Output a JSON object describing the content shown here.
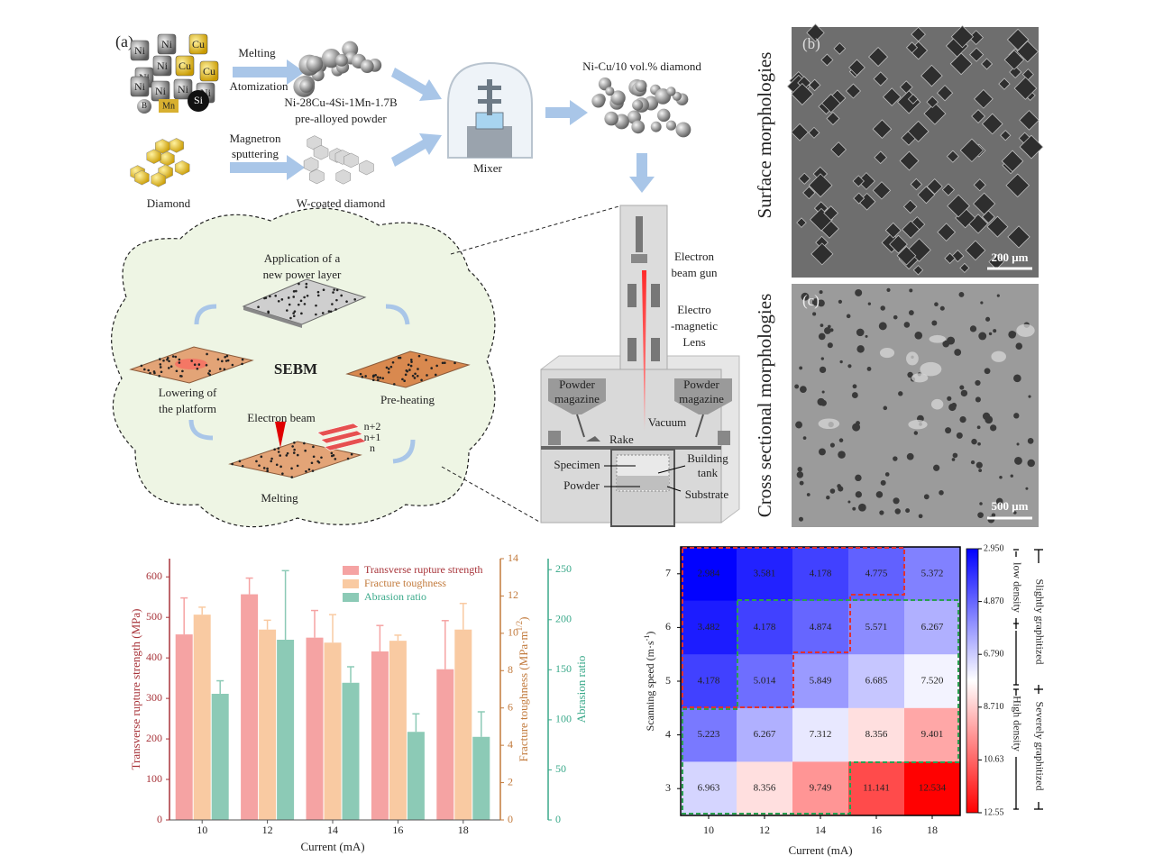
{
  "panel_a": {
    "label": "(a)",
    "elements": {
      "ni": "Ni",
      "cu": "Cu",
      "b": "B",
      "mn": "Mn",
      "si": "Si"
    },
    "melting": "Melting",
    "atomization": "Atomization",
    "alloy_name": "Ni-28Cu-4Si-1Mn-1.7B",
    "alloy_desc": "pre-alloyed powder",
    "diamond": "Diamond",
    "magnetron": "Magnetron",
    "sputtering": "sputtering",
    "coated": "W-coated diamond",
    "mixer": "Mixer",
    "mixture": "Ni-Cu/10 vol.% diamond",
    "cycle": {
      "step1": [
        "Application of a",
        "new power layer"
      ],
      "center": "SEBM",
      "lowering": [
        "Lowering of",
        "the platform"
      ],
      "preheat": "Pre-heating",
      "beam": "Electron beam",
      "melting": "Melting",
      "layers": [
        "n+2",
        "n+1",
        "n"
      ]
    },
    "machine": {
      "gun": [
        "Electron",
        "beam gun"
      ],
      "lens": [
        "Electro",
        "-magnetic",
        "Lens"
      ],
      "magazine": [
        "Powder",
        "magazine"
      ],
      "vacuum": "Vacuum",
      "rake": "Rake",
      "specimen": "Specimen",
      "powder": "Powder",
      "tank": [
        "Building",
        "tank"
      ],
      "substrate": "Substrate"
    }
  },
  "panel_b": {
    "label": "(b)",
    "title": "Surface morphologies",
    "scale": "200 μm"
  },
  "panel_c": {
    "label": "(c)",
    "title": "Cross sectional morphologies",
    "scale": "500 μm"
  },
  "chart_data": [
    {
      "type": "bar",
      "categories": [
        10,
        12,
        14,
        16,
        18
      ],
      "x_label": "Current (mA)",
      "y_label": "Transverse rupture strength (MPa)",
      "y2_label": "Fracture toughness (MPa·m",
      "y2_label_sup": "1/2",
      "y2_label_end": ")",
      "y3_label": "Abrasion ratio",
      "ylim": [
        0,
        645
      ],
      "yticks": [
        0,
        100,
        200,
        300,
        400,
        500,
        600
      ],
      "y_color": "#a8343a",
      "y2lim": [
        0,
        14
      ],
      "y2ticks": [
        0,
        2,
        4,
        6,
        8,
        10,
        12,
        14
      ],
      "y2_color": "#c27a3c",
      "y3lim": [
        0,
        261
      ],
      "y3ticks": [
        0,
        50,
        100,
        150,
        200,
        250
      ],
      "y3_color": "#3aa98a",
      "legend": "upper right",
      "series": [
        {
          "name": "Transverse rupture strength",
          "color": "#f5a3a3",
          "axis": "y",
          "values": [
            458,
            557,
            450,
            416,
            372
          ],
          "errors": [
            90,
            40,
            67,
            64,
            120
          ]
        },
        {
          "name": "Fracture toughness",
          "color": "#f9caa2",
          "axis": "y2",
          "values": [
            11.0,
            10.2,
            9.5,
            9.6,
            10.2
          ],
          "errors": [
            0.4,
            0.5,
            1.5,
            0.3,
            1.4
          ]
        },
        {
          "name": "Abrasion ratio",
          "color": "#8ccab6",
          "axis": "y3",
          "values": [
            126,
            180,
            137,
            88,
            83
          ],
          "errors": [
            13,
            69,
            16,
            18,
            25
          ]
        }
      ]
    },
    {
      "type": "heatmap",
      "x_categories": [
        10,
        12,
        14,
        16,
        18
      ],
      "y_categories": [
        7,
        6,
        5,
        4,
        3
      ],
      "x_label": "Current (mA)",
      "y_label": "Scanning speed (m·s",
      "y_label_sup": "-1",
      "y_label_end": ")",
      "values": [
        [
          2.984,
          3.581,
          4.178,
          4.775,
          5.372
        ],
        [
          3.482,
          4.178,
          4.874,
          5.571,
          6.267
        ],
        [
          4.178,
          5.014,
          5.849,
          6.685,
          7.52
        ],
        [
          5.223,
          6.267,
          7.312,
          8.356,
          9.401
        ],
        [
          6.963,
          8.356,
          9.749,
          11.141,
          12.534
        ]
      ],
      "value_labels": [
        [
          "2.984",
          "3.581",
          "4.178",
          "4.775",
          "5.372"
        ],
        [
          "3.482",
          "4.178",
          "4.874",
          "5.571",
          "6.267"
        ],
        [
          "4.178",
          "5.014",
          "5.849",
          "6.685",
          "7.520"
        ],
        [
          "5.223",
          "6.267",
          "7.312",
          "8.356",
          "9.401"
        ],
        [
          "6.963",
          "8.356",
          "9.749",
          "11.141",
          "12.534"
        ]
      ],
      "clim": [
        2.95,
        12.55
      ],
      "cticks": [
        {
          "value": 2.95,
          "label": "2.950"
        },
        {
          "value": 4.87,
          "label": "4.870"
        },
        {
          "value": 6.79,
          "label": "6.790"
        },
        {
          "value": 8.71,
          "label": "8.710"
        },
        10.63,
        12.55
      ],
      "colormap": [
        "#0000ff",
        "#ffffff",
        "#ff0000"
      ],
      "annotations": {
        "low": "low density",
        "high": "High density",
        "slight": "Slightly graphitized",
        "severe": "Severely graphitized"
      }
    }
  ]
}
